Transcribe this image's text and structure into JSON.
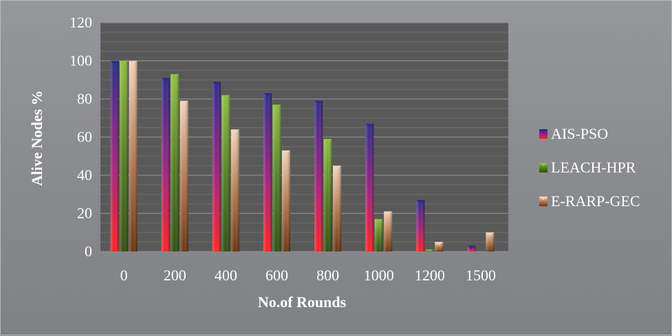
{
  "chart_data": {
    "type": "bar",
    "title": "",
    "xlabel": "No.of Rounds",
    "ylabel": "Alive Nodes %",
    "categories": [
      "0",
      "200",
      "400",
      "600",
      "800",
      "1000",
      "1200",
      "1500"
    ],
    "ylim": [
      0,
      120
    ],
    "yticks": [
      0,
      20,
      40,
      60,
      80,
      100,
      120
    ],
    "grid": true,
    "legend_position": "right",
    "series": [
      {
        "name": "AIS-PSO",
        "values": [
          100,
          91,
          89,
          83,
          79,
          67,
          27,
          3
        ],
        "colors": [
          "#2a2a8a",
          "#a0207a",
          "#ff2020"
        ]
      },
      {
        "name": "LEACH-HPR",
        "values": [
          100,
          93,
          82,
          77,
          59,
          17,
          1,
          0
        ],
        "colors": [
          "#8fbf40",
          "#4f7a20",
          "#2f4f10"
        ]
      },
      {
        "name": "E-RARP-GEC",
        "values": [
          100,
          79,
          64,
          53,
          45,
          21,
          5,
          10
        ],
        "colors": [
          "#f2d2b8",
          "#b0744a",
          "#6a3410"
        ]
      }
    ]
  }
}
